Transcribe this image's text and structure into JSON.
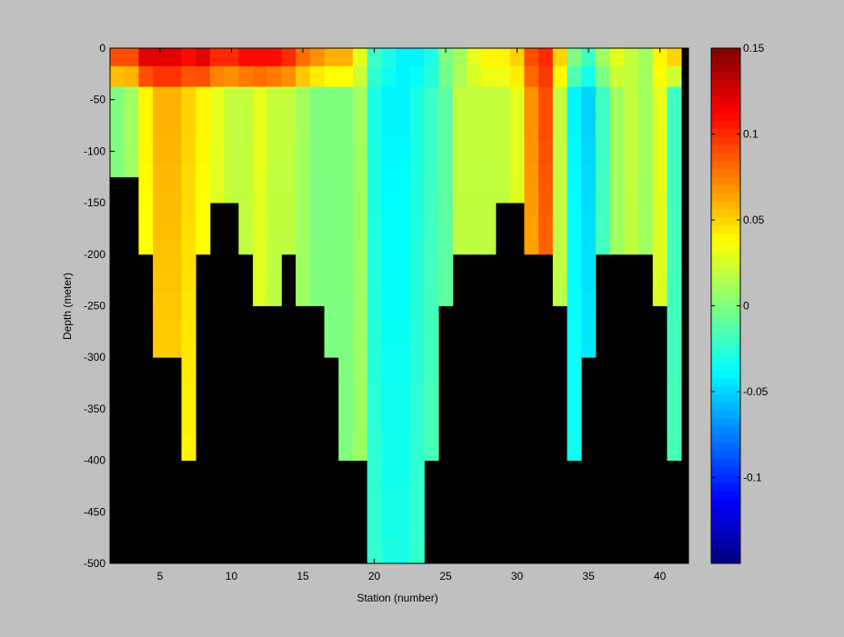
{
  "chart_data": {
    "type": "heatmap",
    "title": "",
    "xlabel": "Station (number)",
    "ylabel": "Depth (meter)",
    "xlim": [
      1.5,
      42.0
    ],
    "ylim": [
      -500,
      0
    ],
    "x_ticks": [
      5,
      10,
      15,
      20,
      25,
      30,
      35,
      40
    ],
    "y_ticks": [
      0,
      -50,
      -100,
      -150,
      -200,
      -250,
      -300,
      -350,
      -400,
      -450,
      -500
    ],
    "stations": [
      2,
      3,
      4,
      5,
      6,
      7,
      8,
      9,
      10,
      11,
      12,
      13,
      14,
      15,
      16,
      17,
      18,
      19,
      20,
      21,
      22,
      23,
      24,
      25,
      26,
      27,
      28,
      29,
      30,
      31,
      32,
      33,
      34,
      35,
      36,
      37,
      38,
      39,
      40,
      41
    ],
    "depth_levels": [
      -10,
      -25,
      -50,
      -75,
      -100,
      -125,
      -150,
      -175,
      -200,
      -225,
      -250,
      -275,
      -300,
      -350,
      -400,
      -450,
      -500
    ],
    "bottom_depth": [
      -125,
      -125,
      -200,
      -300,
      -300,
      -400,
      -200,
      -150,
      -150,
      -200,
      -250,
      -250,
      -200,
      -250,
      -250,
      -300,
      -400,
      -400,
      -500,
      -500,
      -500,
      -500,
      -400,
      -250,
      -200,
      -200,
      -200,
      -150,
      -150,
      -200,
      -200,
      -250,
      -400,
      -300,
      -200,
      -200,
      -200,
      -200,
      -250,
      -400
    ],
    "surface_values": [
      0.09,
      0.09,
      0.12,
      0.12,
      0.12,
      0.11,
      0.12,
      0.1,
      0.1,
      0.11,
      0.11,
      0.11,
      0.1,
      0.08,
      0.07,
      0.06,
      0.06,
      0.03,
      -0.02,
      -0.03,
      -0.04,
      -0.04,
      -0.03,
      0.0,
      0.01,
      0.03,
      0.04,
      0.04,
      0.05,
      0.09,
      0.1,
      0.05,
      0.0,
      -0.02,
      0.01,
      0.03,
      0.02,
      0.01,
      0.04,
      0.05
    ],
    "subsurface_values": [
      0.0,
      0.01,
      0.04,
      0.06,
      0.06,
      0.05,
      0.04,
      0.03,
      0.02,
      0.02,
      0.03,
      0.02,
      0.02,
      0.01,
      0.0,
      0.0,
      0.0,
      0.01,
      -0.03,
      -0.04,
      -0.04,
      -0.03,
      -0.02,
      -0.01,
      0.02,
      0.02,
      0.02,
      0.02,
      0.03,
      0.07,
      0.09,
      0.02,
      -0.04,
      -0.05,
      -0.02,
      0.01,
      0.02,
      0.01,
      0.03,
      -0.02
    ],
    "colorbar": {
      "colormap": "jet",
      "clim": [
        -0.15,
        0.15
      ],
      "ticks": [
        0.15,
        0.1,
        0.05,
        0,
        -0.05,
        -0.1
      ],
      "tick_labels": [
        "0.15",
        "0.1",
        "0.05",
        "0",
        "-0.05",
        "-0.1"
      ]
    },
    "bottom_color": "#000000",
    "background_color": "#c0c0c0"
  }
}
